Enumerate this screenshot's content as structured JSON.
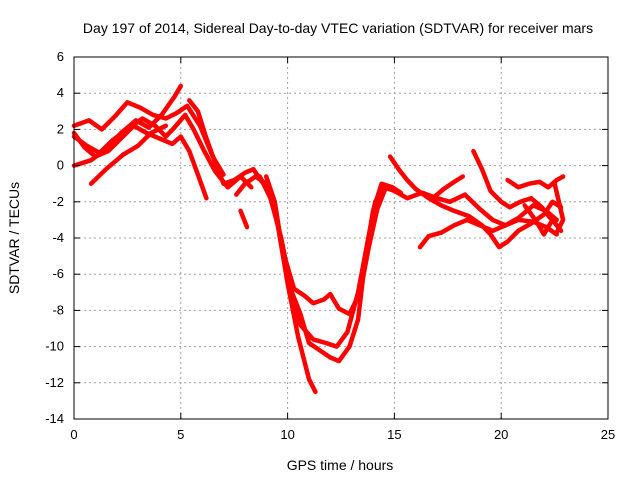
{
  "chart_data": {
    "type": "line",
    "title": "Day 197 of 2014, Sidereal Day-to-day VTEC variation (SDTVAR) for receiver mars",
    "xlabel": "GPS time / hours",
    "ylabel": "SDTVAR / TECUs",
    "xlim": [
      0,
      25
    ],
    "ylim": [
      -14,
      6
    ],
    "x_ticks": [
      0,
      5,
      10,
      15,
      20,
      25
    ],
    "y_ticks": [
      -14,
      -12,
      -10,
      -8,
      -6,
      -4,
      -2,
      0,
      2,
      4,
      6
    ],
    "grid": true,
    "color": "#ff0000",
    "series": [
      {
        "points": [
          [
            0,
            1.8
          ],
          [
            0.5,
            1.0
          ],
          [
            1.0,
            0.5
          ],
          [
            1.6,
            0.8
          ],
          [
            2.2,
            1.5
          ],
          [
            2.8,
            2.2
          ],
          [
            3.4,
            1.8
          ],
          [
            4.0,
            1.5
          ],
          [
            4.6,
            1.2
          ],
          [
            5.0,
            1.6
          ],
          [
            5.4,
            0.8
          ],
          [
            5.8,
            -0.5
          ],
          [
            6.2,
            -1.8
          ]
        ]
      },
      {
        "points": [
          [
            0,
            1.6
          ],
          [
            0.6,
            1.1
          ],
          [
            1.2,
            0.7
          ],
          [
            1.8,
            1.4
          ],
          [
            2.5,
            2.0
          ],
          [
            3.2,
            2.6
          ],
          [
            3.8,
            2.2
          ],
          [
            4.3,
            1.6
          ],
          [
            4.7,
            2.1
          ],
          [
            5.2,
            2.8
          ],
          [
            5.6,
            2.0
          ],
          [
            6.1,
            0.8
          ],
          [
            6.6,
            -0.3
          ],
          [
            7.2,
            -1.2
          ],
          [
            7.8,
            -0.6
          ],
          [
            8.3,
            -1.2
          ]
        ]
      },
      {
        "points": [
          [
            0,
            2.2
          ],
          [
            0.7,
            2.5
          ],
          [
            1.3,
            2.0
          ],
          [
            1.9,
            2.7
          ],
          [
            2.5,
            3.5
          ],
          [
            3.1,
            3.2
          ],
          [
            3.7,
            2.8
          ],
          [
            4.3,
            2.6
          ],
          [
            4.8,
            2.9
          ],
          [
            5.3,
            3.3
          ],
          [
            5.9,
            2.2
          ],
          [
            6.5,
            0.5
          ],
          [
            7.0,
            -0.5
          ]
        ]
      },
      {
        "points": [
          [
            0,
            0.0
          ],
          [
            0.8,
            0.3
          ],
          [
            1.5,
            0.9
          ],
          [
            2.2,
            1.8
          ],
          [
            2.9,
            2.5
          ],
          [
            3.5,
            2.1
          ],
          [
            4.1,
            2.8
          ],
          [
            4.7,
            3.8
          ],
          [
            5.0,
            4.4
          ]
        ]
      },
      {
        "points": [
          [
            0.8,
            -1.0
          ],
          [
            1.5,
            -0.2
          ],
          [
            2.3,
            0.6
          ],
          [
            3.0,
            1.1
          ],
          [
            3.6,
            1.8
          ],
          [
            4.3,
            2.2
          ]
        ]
      },
      {
        "points": [
          [
            5.4,
            3.6
          ],
          [
            5.8,
            3.0
          ],
          [
            6.2,
            1.5
          ],
          [
            6.6,
            0.2
          ],
          [
            7.0,
            -1.0
          ],
          [
            7.5,
            -0.8
          ],
          [
            8.0,
            -0.4
          ],
          [
            8.4,
            -0.2
          ],
          [
            8.8,
            -0.9
          ]
        ]
      },
      {
        "points": [
          [
            7.6,
            -1.6
          ],
          [
            8.0,
            -1.0
          ],
          [
            8.5,
            -0.6
          ],
          [
            9.0,
            -1.0
          ],
          [
            9.5,
            -3.0
          ],
          [
            10.0,
            -6.5
          ],
          [
            10.5,
            -9.5
          ],
          [
            11.0,
            -11.8
          ],
          [
            11.3,
            -12.5
          ]
        ]
      },
      {
        "points": [
          [
            7.8,
            -2.5
          ],
          [
            8.1,
            -3.4
          ]
        ]
      },
      {
        "points": [
          [
            8.7,
            -0.6
          ],
          [
            9.2,
            -1.8
          ],
          [
            9.7,
            -4.0
          ],
          [
            10.2,
            -7.0
          ],
          [
            10.6,
            -8.2
          ],
          [
            11.0,
            -9.8
          ],
          [
            11.5,
            -10.2
          ],
          [
            12.0,
            -10.6
          ],
          [
            12.4,
            -10.8
          ],
          [
            12.9,
            -10.0
          ],
          [
            13.3,
            -8.5
          ],
          [
            13.6,
            -5.5
          ],
          [
            14.0,
            -2.5
          ],
          [
            14.4,
            -1.0
          ],
          [
            14.9,
            -1.2
          ],
          [
            15.3,
            -1.5
          ]
        ]
      },
      {
        "points": [
          [
            9.0,
            -0.6
          ],
          [
            9.4,
            -2.0
          ],
          [
            9.8,
            -5.0
          ],
          [
            10.2,
            -7.6
          ],
          [
            10.6,
            -8.8
          ],
          [
            11.2,
            -9.6
          ],
          [
            11.8,
            -9.8
          ],
          [
            12.3,
            -10.0
          ],
          [
            12.8,
            -9.2
          ],
          [
            13.3,
            -7.0
          ],
          [
            13.7,
            -4.5
          ],
          [
            14.1,
            -2.0
          ],
          [
            14.5,
            -1.2
          ],
          [
            15.0,
            -1.4
          ],
          [
            15.6,
            -1.8
          ],
          [
            16.3,
            -1.5
          ],
          [
            17.0,
            -1.8
          ],
          [
            17.6,
            -2.0
          ],
          [
            18.3,
            -1.6
          ],
          [
            19.0,
            -2.4
          ],
          [
            19.6,
            -3.0
          ],
          [
            20.2,
            -3.3
          ],
          [
            20.8,
            -2.9
          ],
          [
            21.5,
            -2.2
          ],
          [
            22.1,
            -2.5
          ],
          [
            22.6,
            -3.0
          ]
        ]
      },
      {
        "points": [
          [
            9.9,
            -5.2
          ],
          [
            10.3,
            -6.8
          ],
          [
            10.8,
            -7.2
          ],
          [
            11.2,
            -7.6
          ],
          [
            11.7,
            -7.4
          ],
          [
            12.0,
            -7.1
          ],
          [
            12.4,
            -7.9
          ],
          [
            12.9,
            -8.2
          ],
          [
            13.4,
            -7.0
          ],
          [
            13.8,
            -4.5
          ],
          [
            14.2,
            -2.4
          ],
          [
            14.6,
            -1.2
          ]
        ]
      },
      {
        "points": [
          [
            14.8,
            0.5
          ],
          [
            15.2,
            -0.2
          ],
          [
            15.6,
            -0.8
          ],
          [
            16.0,
            -1.3
          ],
          [
            16.6,
            -1.8
          ],
          [
            17.2,
            -2.2
          ],
          [
            17.8,
            -2.5
          ],
          [
            18.5,
            -2.8
          ],
          [
            19.1,
            -3.3
          ],
          [
            19.5,
            -3.8
          ],
          [
            19.9,
            -4.5
          ],
          [
            20.3,
            -4.2
          ],
          [
            20.8,
            -3.6
          ],
          [
            21.4,
            -3.2
          ],
          [
            22.0,
            -2.7
          ],
          [
            22.4,
            -2.0
          ],
          [
            22.8,
            -2.3
          ]
        ]
      },
      {
        "points": [
          [
            16.2,
            -4.5
          ],
          [
            16.6,
            -3.9
          ],
          [
            17.2,
            -3.7
          ],
          [
            17.8,
            -3.3
          ],
          [
            18.4,
            -3.0
          ],
          [
            19.0,
            -3.3
          ],
          [
            19.6,
            -3.6
          ],
          [
            20.2,
            -3.3
          ],
          [
            20.8,
            -3.0
          ],
          [
            21.5,
            -3.1
          ],
          [
            22.1,
            -3.4
          ],
          [
            22.6,
            -3.8
          ]
        ]
      },
      {
        "points": [
          [
            16.8,
            -1.8
          ],
          [
            17.3,
            -1.3
          ],
          [
            17.8,
            -0.9
          ],
          [
            18.2,
            -0.6
          ]
        ]
      },
      {
        "points": [
          [
            18.7,
            0.8
          ],
          [
            19.1,
            -0.2
          ],
          [
            19.5,
            -1.4
          ],
          [
            20.0,
            -2.0
          ],
          [
            20.4,
            -2.3
          ],
          [
            20.9,
            -2.0
          ],
          [
            21.4,
            -1.8
          ],
          [
            21.9,
            -2.3
          ],
          [
            22.3,
            -2.9
          ]
        ]
      },
      {
        "points": [
          [
            20.3,
            -0.8
          ],
          [
            20.8,
            -1.2
          ],
          [
            21.3,
            -1.0
          ],
          [
            21.8,
            -0.9
          ],
          [
            22.2,
            -1.2
          ],
          [
            22.6,
            -0.8
          ],
          [
            22.9,
            -0.6
          ]
        ]
      },
      {
        "points": [
          [
            21.1,
            -2.2
          ],
          [
            21.6,
            -3.0
          ],
          [
            22.0,
            -3.8
          ],
          [
            22.4,
            -3.0
          ],
          [
            22.8,
            -3.6
          ]
        ]
      },
      {
        "points": [
          [
            22.5,
            -1.0
          ],
          [
            22.7,
            -2.0
          ],
          [
            22.9,
            -3.0
          ],
          [
            22.6,
            -3.7
          ]
        ]
      }
    ]
  }
}
